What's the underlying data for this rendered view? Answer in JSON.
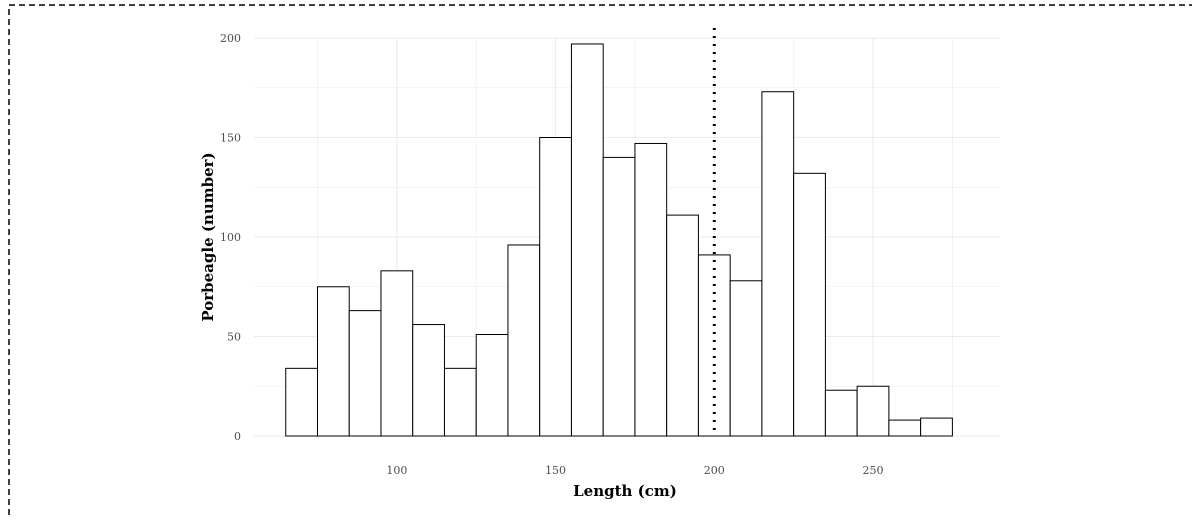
{
  "chart_data": {
    "type": "bar",
    "subtype": "histogram",
    "xlabel": "Length (cm)",
    "ylabel": "Porbeagle (number)",
    "xlim": [
      55,
      290
    ],
    "ylim": [
      0,
      200
    ],
    "x_ticks": [
      100,
      150,
      200,
      250
    ],
    "y_ticks": [
      0,
      50,
      100,
      150,
      200
    ],
    "bin_width": 10,
    "bins": [
      {
        "x0": 65,
        "x1": 75,
        "count": 34
      },
      {
        "x0": 75,
        "x1": 85,
        "count": 75
      },
      {
        "x0": 85,
        "x1": 95,
        "count": 63
      },
      {
        "x0": 95,
        "x1": 105,
        "count": 83
      },
      {
        "x0": 105,
        "x1": 115,
        "count": 56
      },
      {
        "x0": 115,
        "x1": 125,
        "count": 34
      },
      {
        "x0": 125,
        "x1": 135,
        "count": 51
      },
      {
        "x0": 135,
        "x1": 145,
        "count": 96
      },
      {
        "x0": 145,
        "x1": 155,
        "count": 150
      },
      {
        "x0": 155,
        "x1": 165,
        "count": 197
      },
      {
        "x0": 165,
        "x1": 175,
        "count": 140
      },
      {
        "x0": 175,
        "x1": 185,
        "count": 147
      },
      {
        "x0": 185,
        "x1": 195,
        "count": 111
      },
      {
        "x0": 195,
        "x1": 205,
        "count": 91
      },
      {
        "x0": 205,
        "x1": 215,
        "count": 78
      },
      {
        "x0": 215,
        "x1": 225,
        "count": 173
      },
      {
        "x0": 225,
        "x1": 235,
        "count": 132
      },
      {
        "x0": 235,
        "x1": 245,
        "count": 23
      },
      {
        "x0": 245,
        "x1": 255,
        "count": 25
      },
      {
        "x0": 255,
        "x1": 265,
        "count": 8
      },
      {
        "x0": 265,
        "x1": 275,
        "count": 9
      }
    ],
    "reference_line": {
      "x": 200,
      "style": "dotted"
    },
    "grid": true,
    "bar_fill": "#ffffff",
    "bar_stroke": "#000000",
    "gridline_color": "#ebebeb",
    "frame_border": "dashed"
  }
}
